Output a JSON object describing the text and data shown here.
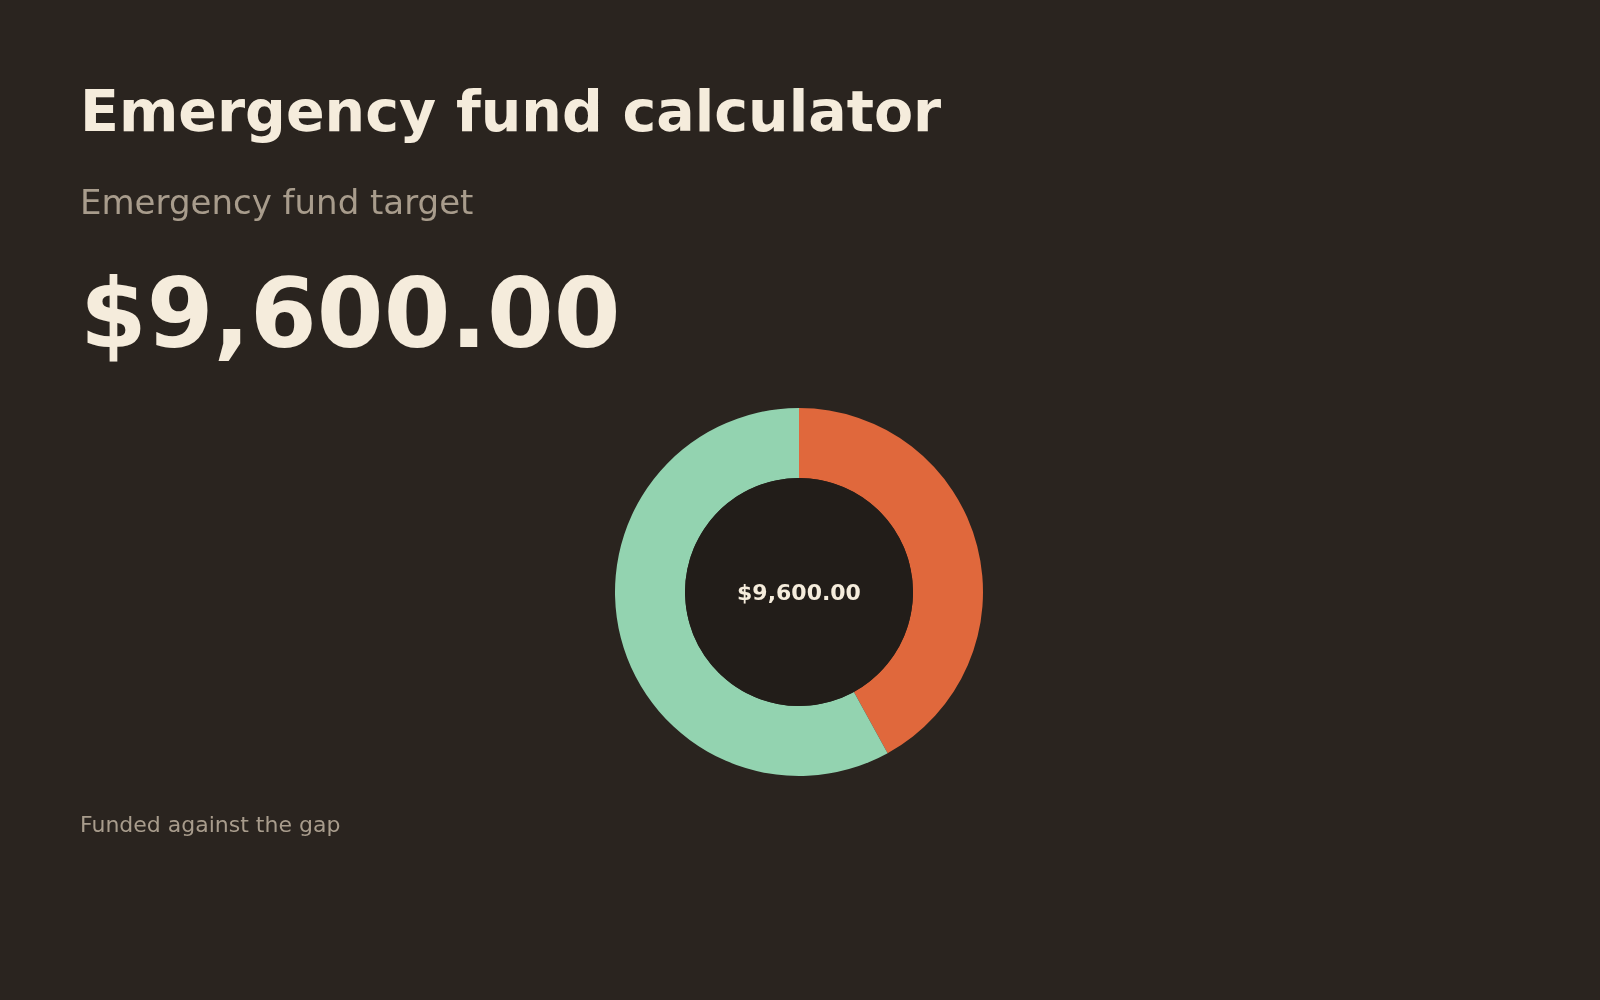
{
  "chart_data": {
    "type": "donut",
    "title": "Emergency fund calculator",
    "subtitle": "Emergency fund target",
    "categories": [
      null,
      null
    ],
    "values": [
      42,
      58
    ],
    "colors": [
      "#e0683c",
      "#93d3b0"
    ],
    "annotations": [
      "$9,600.00",
      "$9,600.00",
      "Funded against the gap"
    ],
    "legend": false
  }
}
